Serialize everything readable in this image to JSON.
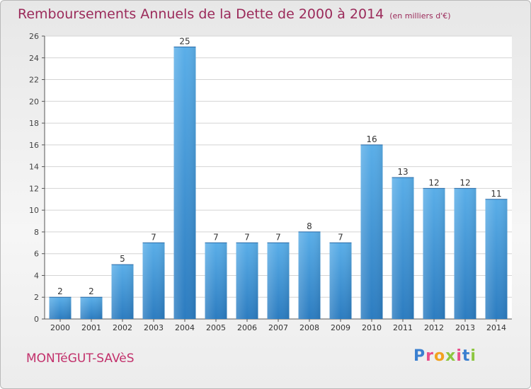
{
  "title": "Remboursements Annuels de la Dette de 2000 à 2014",
  "unit": "(en milliers d'€)",
  "commune": "MONTéGUT-SAVèS",
  "brand": "Proxiti",
  "colors": {
    "title": "#9b2a5a",
    "commune": "#c2306b",
    "bar_top": "#5aaee8",
    "bar_bottom": "#2c7cc0",
    "grid": "#d4d4d4",
    "brand_letters": [
      "#3a7fd0",
      "#e94e8a",
      "#f2a11f",
      "#8cc63f",
      "#e94e8a",
      "#3a7fd0",
      "#8cc63f"
    ]
  },
  "chart_data": {
    "type": "bar",
    "title": "Remboursements Annuels de la Dette de 2000 à 2014",
    "categories": [
      "2000",
      "2001",
      "2002",
      "2003",
      "2004",
      "2005",
      "2006",
      "2007",
      "2008",
      "2009",
      "2010",
      "2011",
      "2012",
      "2013",
      "2014"
    ],
    "values": [
      2,
      2,
      5,
      7,
      25,
      7,
      7,
      7,
      8,
      7,
      16,
      13,
      12,
      12,
      11
    ],
    "ylim": [
      0,
      26
    ],
    "yticks": [
      0,
      2,
      4,
      6,
      8,
      10,
      12,
      14,
      16,
      18,
      20,
      22,
      24,
      26
    ],
    "xlabel": "",
    "ylabel": "",
    "grid": true,
    "data_labels": true
  }
}
